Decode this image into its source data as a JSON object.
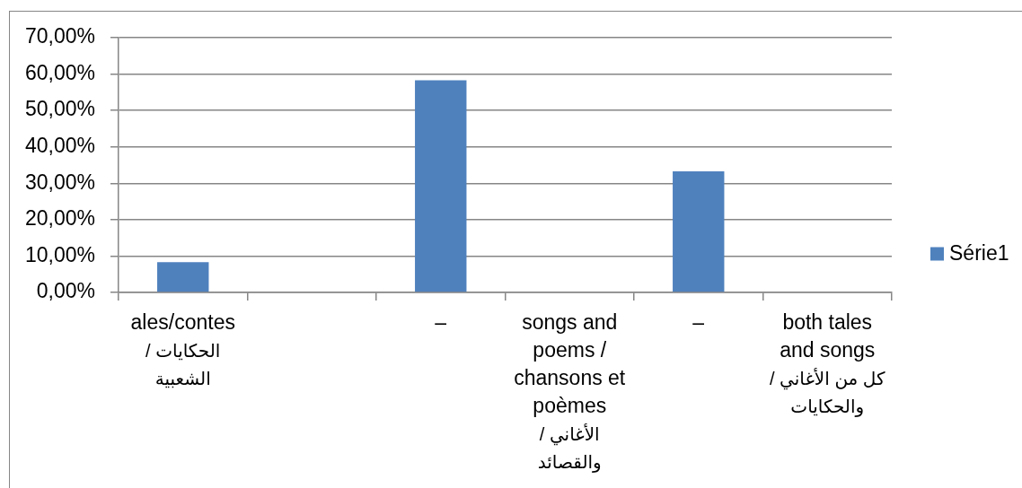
{
  "chart_data": {
    "type": "bar",
    "categories": [
      "ales/contes\nالحكايات /\nالشعبية",
      null,
      "–",
      "songs and\npoems /\nchansons et\npoèmes\nالأغاني /\nوالقصائد",
      "–",
      "both tales\nand songs\nكل من الأغاني /\nوالحكايات"
    ],
    "series": [
      {
        "name": "Série1",
        "color": "#4f81bd",
        "values": [
          8.3,
          null,
          58.3,
          null,
          33.3,
          null
        ]
      }
    ],
    "ylim": [
      0,
      70
    ],
    "yticks": [
      {
        "value": 0,
        "label": "0,00%"
      },
      {
        "value": 10,
        "label": "10,00%"
      },
      {
        "value": 20,
        "label": "20,00%"
      },
      {
        "value": 30,
        "label": "30,00%"
      },
      {
        "value": 40,
        "label": "40,00%"
      },
      {
        "value": 50,
        "label": "50,00%"
      },
      {
        "value": 60,
        "label": "60,00%"
      },
      {
        "value": 70,
        "label": "70,00%"
      }
    ],
    "grid": "y",
    "legend": "right"
  }
}
